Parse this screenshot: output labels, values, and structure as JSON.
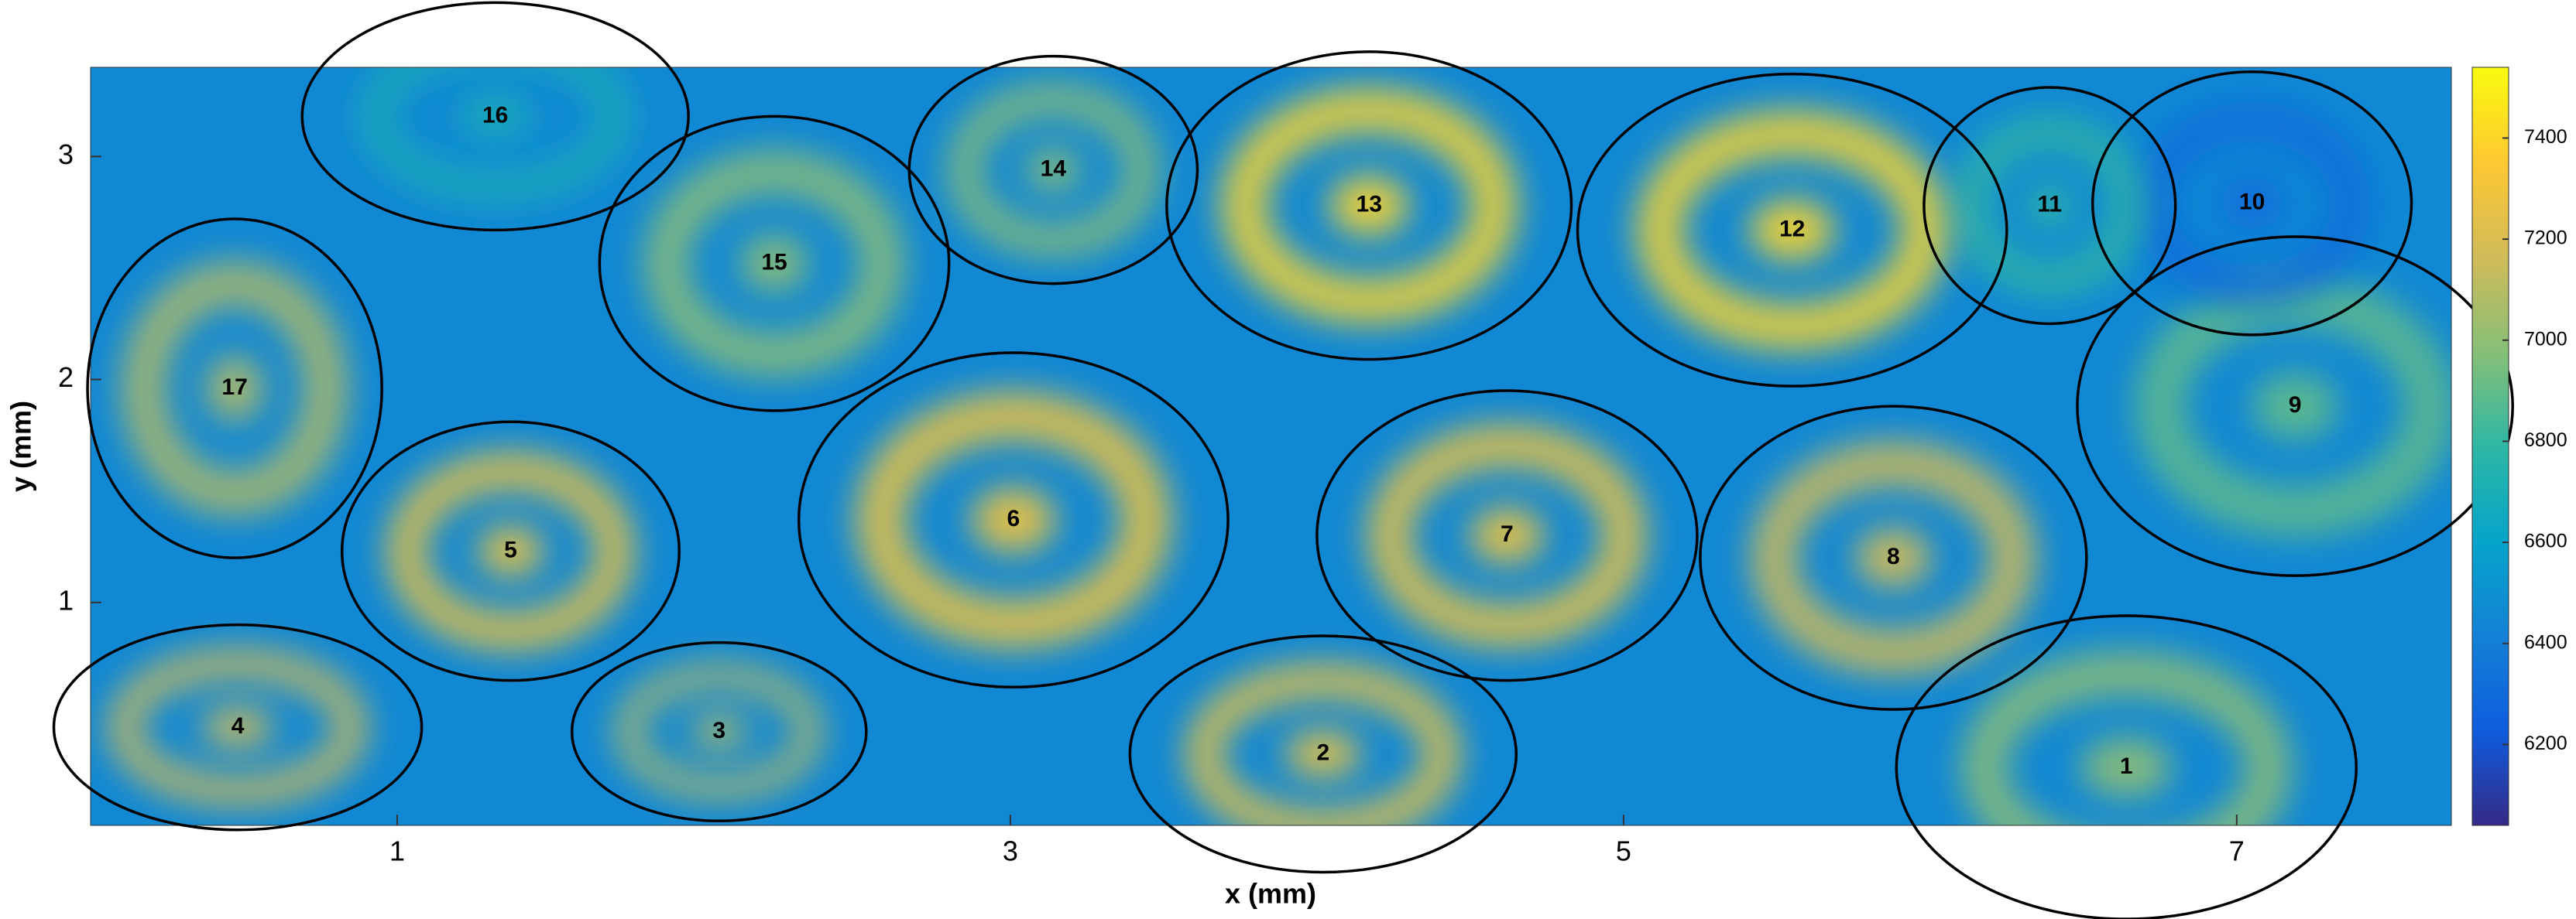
{
  "chart_data": {
    "type": "heatmap-regions",
    "xlabel": "x (mm)",
    "ylabel": "y (mm)",
    "xlim": [
      0,
      7.7
    ],
    "ylim": [
      0,
      3.4
    ],
    "xticks": [
      1,
      3,
      5,
      7
    ],
    "yticks": [
      1,
      2,
      3
    ],
    "clim": [
      6040,
      7540
    ],
    "cticks": [
      6200,
      6400,
      6600,
      6800,
      7000,
      7200,
      7400
    ],
    "background": 6450,
    "regions": [
      {
        "label": "1",
        "x": 6.64,
        "y": 0.26,
        "rx": 0.75,
        "ry": 0.68,
        "peak": 7000
      },
      {
        "label": "2",
        "x": 4.02,
        "y": 0.32,
        "rx": 0.63,
        "ry": 0.53,
        "peak": 7300
      },
      {
        "label": "3",
        "x": 2.05,
        "y": 0.42,
        "rx": 0.48,
        "ry": 0.4,
        "peak": 7100
      },
      {
        "label": "4",
        "x": 0.48,
        "y": 0.44,
        "rx": 0.6,
        "ry": 0.46,
        "peak": 7200
      },
      {
        "label": "5",
        "x": 1.37,
        "y": 1.23,
        "rx": 0.55,
        "ry": 0.58,
        "peak": 7300
      },
      {
        "label": "6",
        "x": 3.01,
        "y": 1.37,
        "rx": 0.7,
        "ry": 0.75,
        "peak": 7300
      },
      {
        "label": "7",
        "x": 4.62,
        "y": 1.3,
        "rx": 0.62,
        "ry": 0.65,
        "peak": 7300
      },
      {
        "label": "8",
        "x": 5.88,
        "y": 1.2,
        "rx": 0.63,
        "ry": 0.68,
        "peak": 7200
      },
      {
        "label": "9",
        "x": 7.19,
        "y": 1.88,
        "rx": 0.71,
        "ry": 0.76,
        "peak": 6900
      },
      {
        "label": "10",
        "x": 7.05,
        "y": 2.79,
        "rx": 0.52,
        "ry": 0.59,
        "peak": 6300
      },
      {
        "label": "11",
        "x": 6.39,
        "y": 2.78,
        "rx": 0.41,
        "ry": 0.53,
        "peak": 6800
      },
      {
        "label": "12",
        "x": 5.55,
        "y": 2.67,
        "rx": 0.7,
        "ry": 0.7,
        "peak": 7400
      },
      {
        "label": "13",
        "x": 4.17,
        "y": 2.78,
        "rx": 0.66,
        "ry": 0.69,
        "peak": 7400
      },
      {
        "label": "14",
        "x": 3.14,
        "y": 2.94,
        "rx": 0.47,
        "ry": 0.51,
        "peak": 7000
      },
      {
        "label": "15",
        "x": 2.23,
        "y": 2.52,
        "rx": 0.57,
        "ry": 0.66,
        "peak": 7000
      },
      {
        "label": "16",
        "x": 1.32,
        "y": 3.18,
        "rx": 0.63,
        "ry": 0.51,
        "peak": 6700
      },
      {
        "label": "17",
        "x": 0.47,
        "y": 1.96,
        "rx": 0.48,
        "ry": 0.76,
        "peak": 7100
      }
    ]
  }
}
